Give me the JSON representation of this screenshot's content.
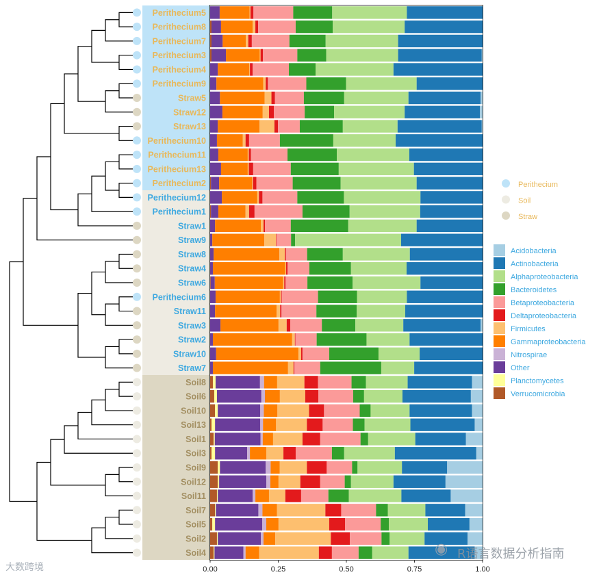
{
  "chart_data": {
    "type": "bar",
    "orientation": "horizontal-stacked",
    "xlim": [
      0,
      1
    ],
    "x_ticks": [
      "0.00",
      "0.25",
      "0.50",
      "0.75",
      "1.00"
    ],
    "tick_values": [
      0,
      0.25,
      0.5,
      0.75,
      1.0
    ],
    "stack_order": [
      "Verrucomicrobia",
      "Planctomycetes",
      "Other",
      "Nitrospirae",
      "Gammaproteobacteria",
      "Firmicutes",
      "Deltaproteobacteria",
      "Betaproteobacteria",
      "Bacteroidetes",
      "Alphaproteobacteria",
      "Actinobacteria",
      "Acidobacteria"
    ],
    "legend_taxa": [
      {
        "name": "Acidobacteria",
        "color": "#A6CEE3"
      },
      {
        "name": "Actinobacteria",
        "color": "#1F78B4"
      },
      {
        "name": "Alphaproteobacteria",
        "color": "#B2DF8A"
      },
      {
        "name": "Bacteroidetes",
        "color": "#33A02C"
      },
      {
        "name": "Betaproteobacteria",
        "color": "#FB9A99"
      },
      {
        "name": "Deltaproteobacteria",
        "color": "#E31A1C"
      },
      {
        "name": "Firmicutes",
        "color": "#FDBF6F"
      },
      {
        "name": "Gammaproteobacteria",
        "color": "#FF7F00"
      },
      {
        "name": "Nitrospirae",
        "color": "#CAB2D6"
      },
      {
        "name": "Other",
        "color": "#6A3D9A"
      },
      {
        "name": "Planctomycetes",
        "color": "#FFFF99"
      },
      {
        "name": "Verrucomicrobia",
        "color": "#B15928"
      }
    ],
    "legend_groups": [
      {
        "name": "Perithecium",
        "color": "#BEE3F8"
      },
      {
        "name": "Soil",
        "color": "#EDEBE2"
      },
      {
        "name": "Straw",
        "color": "#DDD7C3"
      }
    ],
    "legend_placement": "right",
    "label_bands": [
      {
        "rows": [
          0,
          12
        ],
        "bg": "#BEE3F8",
        "text": "#E8B85A"
      },
      {
        "rows": [
          13,
          25
        ],
        "bg": "#EEEBE2",
        "text": "#3FA9E0"
      },
      {
        "rows": [
          26,
          38
        ],
        "bg": "#DDD7C3",
        "text": "#A38F62"
      }
    ],
    "samples": [
      {
        "name": "Perithecium5",
        "group": "Perithecium",
        "values": [
          0,
          0,
          0.035,
          0,
          0.11,
          0.003,
          0.011,
          0.146,
          0.143,
          0.274,
          0.278,
          0
        ]
      },
      {
        "name": "Perithecium8",
        "group": "Perithecium",
        "values": [
          0.005,
          0,
          0.035,
          0,
          0.116,
          0.01,
          0.01,
          0.138,
          0.136,
          0.264,
          0.286,
          0
        ]
      },
      {
        "name": "Perithecium7",
        "group": "Perithecium",
        "values": [
          0.005,
          0,
          0.041,
          0,
          0.085,
          0.009,
          0.013,
          0.138,
          0.133,
          0.266,
          0.31,
          0
        ]
      },
      {
        "name": "Perithecium3",
        "group": "Perithecium",
        "values": [
          0.005,
          0,
          0.053,
          0,
          0.124,
          0.003,
          0.009,
          0.126,
          0.106,
          0.264,
          0.307,
          0.003
        ]
      },
      {
        "name": "Perithecium4",
        "group": "Perithecium",
        "values": [
          0,
          0,
          0.028,
          0,
          0.116,
          0.002,
          0.01,
          0.133,
          0.098,
          0.286,
          0.327,
          0
        ]
      },
      {
        "name": "Perithecium9",
        "group": "Perithecium",
        "values": [
          0,
          0,
          0.023,
          0,
          0.172,
          0.009,
          0.008,
          0.141,
          0.146,
          0.259,
          0.242,
          0
        ]
      },
      {
        "name": "Straw5",
        "group": "Straw",
        "values": [
          0,
          0,
          0.036,
          0,
          0.164,
          0.025,
          0.013,
          0.106,
          0.148,
          0.236,
          0.265,
          0.007
        ]
      },
      {
        "name": "Straw12",
        "group": "Straw",
        "values": [
          0,
          0,
          0.045,
          0,
          0.148,
          0.023,
          0.018,
          0.113,
          0.108,
          0.259,
          0.276,
          0.01
        ]
      },
      {
        "name": "Straw13",
        "group": "Straw",
        "values": [
          0,
          0,
          0.028,
          0,
          0.153,
          0.055,
          0.013,
          0.08,
          0.158,
          0.201,
          0.309,
          0.003
        ]
      },
      {
        "name": "Perithecium10",
        "group": "Perithecium",
        "values": [
          0,
          0,
          0.025,
          0,
          0.095,
          0.01,
          0.013,
          0.113,
          0.196,
          0.229,
          0.319,
          0
        ]
      },
      {
        "name": "Perithecium11",
        "group": "Perithecium",
        "values": [
          0,
          0,
          0.03,
          0,
          0.108,
          0.004,
          0.008,
          0.134,
          0.181,
          0.266,
          0.269,
          0
        ]
      },
      {
        "name": "Perithecium13",
        "group": "Perithecium",
        "values": [
          0,
          0,
          0.04,
          0,
          0.098,
          0.004,
          0.016,
          0.138,
          0.176,
          0.276,
          0.252,
          0
        ]
      },
      {
        "name": "Perithecium2",
        "group": "Perithecium",
        "values": [
          0.003,
          0,
          0.03,
          0,
          0.121,
          0.003,
          0.013,
          0.133,
          0.176,
          0.279,
          0.242,
          0
        ]
      },
      {
        "name": "Perithecium12",
        "group": "Perithecium",
        "values": [
          0,
          0,
          0.043,
          0,
          0.13,
          0.006,
          0.013,
          0.128,
          0.171,
          0.281,
          0.228,
          0
        ]
      },
      {
        "name": "Perithecium1",
        "group": "Perithecium",
        "values": [
          0.003,
          0,
          0.027,
          0,
          0.1,
          0.013,
          0.02,
          0.176,
          0.173,
          0.259,
          0.229,
          0
        ]
      },
      {
        "name": "Straw1",
        "group": "Straw",
        "values": [
          0,
          0,
          0.018,
          0,
          0.168,
          0.01,
          0.005,
          0.095,
          0.211,
          0.251,
          0.242,
          0
        ]
      },
      {
        "name": "Straw9",
        "group": "Straw",
        "values": [
          0,
          0,
          0.008,
          0,
          0.191,
          0.043,
          0.002,
          0.053,
          0.015,
          0.389,
          0.299,
          0
        ]
      },
      {
        "name": "Straw8",
        "group": "Straw",
        "values": [
          0,
          0,
          0.013,
          0,
          0.241,
          0.02,
          0.004,
          0.078,
          0.131,
          0.246,
          0.267,
          0
        ]
      },
      {
        "name": "Straw4",
        "group": "Straw",
        "values": [
          0,
          0,
          0.01,
          0,
          0.266,
          0.003,
          0.005,
          0.08,
          0.153,
          0.204,
          0.279,
          0
        ]
      },
      {
        "name": "Straw6",
        "group": "Straw",
        "values": [
          0.002,
          0,
          0.015,
          0,
          0.251,
          0.004,
          0.005,
          0.08,
          0.166,
          0.249,
          0.228,
          0
        ]
      },
      {
        "name": "Perithecium6",
        "group": "Perithecium",
        "values": [
          0,
          0,
          0.02,
          0,
          0.236,
          0.004,
          0.003,
          0.133,
          0.143,
          0.183,
          0.278,
          0
        ]
      },
      {
        "name": "Straw11",
        "group": "Straw",
        "values": [
          0,
          0,
          0.018,
          0,
          0.226,
          0.013,
          0.005,
          0.128,
          0.148,
          0.178,
          0.284,
          0
        ]
      },
      {
        "name": "Straw3",
        "group": "Straw",
        "values": [
          0,
          0,
          0.038,
          0,
          0.213,
          0.03,
          0.013,
          0.116,
          0.123,
          0.176,
          0.284,
          0.007
        ]
      },
      {
        "name": "Straw2",
        "group": "Straw",
        "values": [
          0,
          0,
          0.01,
          0,
          0.291,
          0.01,
          0.002,
          0.078,
          0.183,
          0.158,
          0.268,
          0
        ]
      },
      {
        "name": "Straw10",
        "group": "Straw",
        "values": [
          0,
          0,
          0.022,
          0,
          0.302,
          0.01,
          0.005,
          0.098,
          0.181,
          0.151,
          0.231,
          0
        ]
      },
      {
        "name": "Straw7",
        "group": "Straw",
        "values": [
          0,
          0,
          0.01,
          0,
          0.276,
          0.02,
          0.003,
          0.095,
          0.224,
          0.121,
          0.251,
          0
        ]
      },
      {
        "name": "Soil8",
        "group": "Soil",
        "values": [
          0.01,
          0.01,
          0.163,
          0.015,
          0.048,
          0.1,
          0.05,
          0.123,
          0.053,
          0.153,
          0.236,
          0.039
        ]
      },
      {
        "name": "Soil6",
        "group": "Soil",
        "values": [
          0.015,
          0.01,
          0.163,
          0.013,
          0.055,
          0.093,
          0.048,
          0.128,
          0.04,
          0.141,
          0.251,
          0.043
        ]
      },
      {
        "name": "Soil10",
        "group": "Soil",
        "values": [
          0.018,
          0.01,
          0.156,
          0.013,
          0.05,
          0.116,
          0.055,
          0.131,
          0.04,
          0.143,
          0.229,
          0.039
        ]
      },
      {
        "name": "Soil13",
        "group": "Soil",
        "values": [
          0.005,
          0.013,
          0.166,
          0.01,
          0.048,
          0.113,
          0.058,
          0.111,
          0.043,
          0.168,
          0.236,
          0.029
        ]
      },
      {
        "name": "Soil1",
        "group": "Soil",
        "values": [
          0.013,
          0.004,
          0.168,
          0.008,
          0.038,
          0.108,
          0.065,
          0.148,
          0.028,
          0.173,
          0.186,
          0.061
        ]
      },
      {
        "name": "Soil3",
        "group": "Soil",
        "values": [
          0.005,
          0.013,
          0.118,
          0.01,
          0.06,
          0.063,
          0.045,
          0.133,
          0.045,
          0.186,
          0.299,
          0.023
        ]
      },
      {
        "name": "Soil9",
        "group": "Soil",
        "values": [
          0.028,
          0.008,
          0.168,
          0.018,
          0.033,
          0.1,
          0.073,
          0.093,
          0.02,
          0.163,
          0.166,
          0.13
        ]
      },
      {
        "name": "Soil12",
        "group": "Soil",
        "values": [
          0.028,
          0.005,
          0.173,
          0.015,
          0.03,
          0.08,
          0.073,
          0.09,
          0.023,
          0.156,
          0.191,
          0.136
        ]
      },
      {
        "name": "Soil11",
        "group": "Soil",
        "values": [
          0.025,
          0.003,
          0.128,
          0.01,
          0.05,
          0.06,
          0.058,
          0.1,
          0.075,
          0.193,
          0.181,
          0.117
        ]
      },
      {
        "name": "Soil7",
        "group": "Soil",
        "values": [
          0.018,
          0.003,
          0.156,
          0.015,
          0.053,
          0.178,
          0.058,
          0.128,
          0.043,
          0.138,
          0.146,
          0.064
        ]
      },
      {
        "name": "Soil5",
        "group": "Soil",
        "values": [
          0.008,
          0.01,
          0.173,
          0.015,
          0.045,
          0.186,
          0.058,
          0.131,
          0.03,
          0.143,
          0.153,
          0.048
        ]
      },
      {
        "name": "Soil2",
        "group": "Soil",
        "values": [
          0.025,
          0.003,
          0.158,
          0.01,
          0.043,
          0.204,
          0.07,
          0.116,
          0.03,
          0.128,
          0.158,
          0.055
        ]
      },
      {
        "name": "Soil4",
        "group": "Soil",
        "values": [
          0.013,
          0.003,
          0.106,
          0.008,
          0.05,
          0.219,
          0.048,
          0.098,
          0.05,
          0.133,
          0.243,
          0.029
        ]
      }
    ],
    "dendrogram": [
      9,
      [
        8,
        [
          7,
          [
            6,
            [
              5,
              [
                4,
                [
                  3,
                  [
                    2,
                    [
                      1,
                      0,
                      1
                    ],
                    2
                  ],
                  [
                    1,
                    3,
                    4
                  ]
                ],
                [
                  2,
                  [
                    1,
                    5,
                    6
                  ],
                  7
                ]
              ],
              [
                1,
                8,
                9
              ]
            ],
            [
              4,
              [
                3,
                [
                  2,
                  [
                    1,
                    10,
                    11
                  ],
                  [
                    1,
                    12,
                    13
                  ]
                ],
                14
              ],
              15
            ]
          ],
          16
        ],
        [
          4,
          [
            3,
            [
              2,
              [
                1,
                17,
                18
              ],
              19
            ],
            [
              2,
              [
                1,
                20,
                21
              ],
              22
            ]
          ],
          [
            2,
            [
              1,
              23,
              24
            ],
            25
          ]
        ]
      ],
      [
        7,
        [
          6,
          [
            5,
            [
              4,
              [
                3,
                [
                  2,
                  [
                    1,
                    26,
                    27
                  ],
                  28
                ],
                29
              ],
              30
            ],
            31
          ],
          [
            2,
            [
              1,
              32,
              33
            ],
            34
          ]
        ],
        [
          3,
          [
            2,
            [
              1,
              35,
              36
            ],
            37
          ],
          38
        ]
      ]
    ]
  },
  "watermarks": {
    "right": "R语言数据分析指南",
    "left": "大数跨境"
  }
}
